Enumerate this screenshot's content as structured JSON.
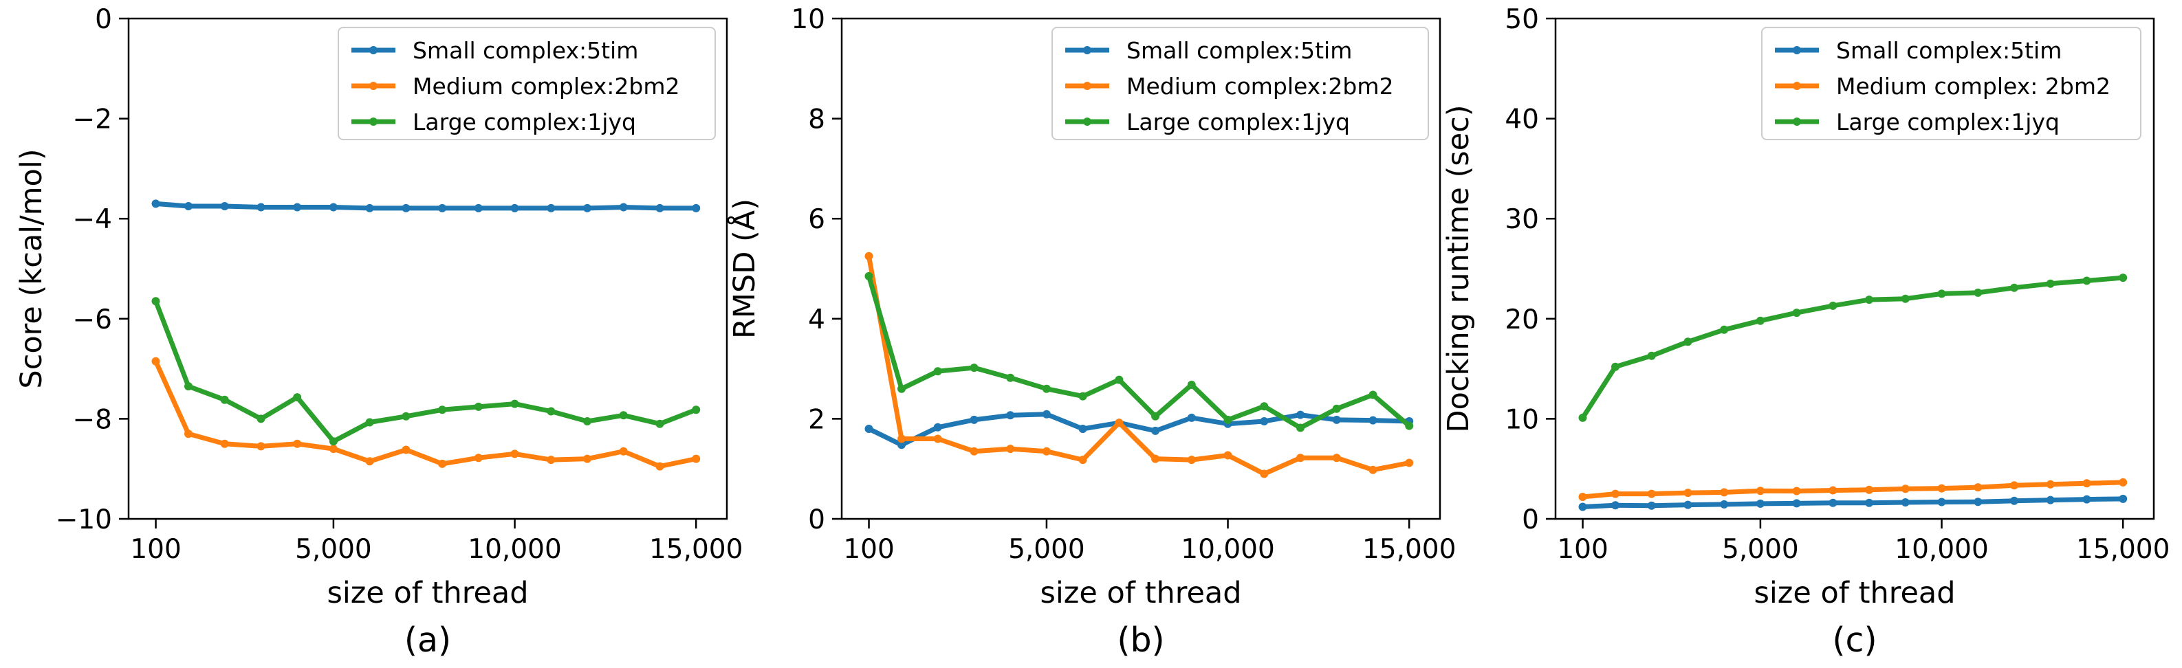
{
  "colors": {
    "series_1": "#1f77b4",
    "series_2": "#ff7f0e",
    "series_3": "#2ca02c"
  },
  "chart_data": [
    {
      "type": "line",
      "subplot_label": "(a)",
      "xlabel": "size of thread",
      "ylabel": "Score (kcal/mol)",
      "x": [
        100,
        1000,
        2000,
        3000,
        4000,
        5000,
        6000,
        7000,
        8000,
        9000,
        10000,
        11000,
        12000,
        13000,
        14000,
        15000
      ],
      "xlim": [
        -650,
        15850
      ],
      "ylim": [
        -10,
        0
      ],
      "xticks": [
        100,
        5000,
        10000,
        15000
      ],
      "xtick_labels": [
        "100",
        "5,000",
        "10,000",
        "15,000"
      ],
      "yticks": [
        0,
        -2,
        -4,
        -6,
        -8,
        -10
      ],
      "ytick_labels": [
        "0",
        "−2",
        "−4",
        "−6",
        "−8",
        "−10"
      ],
      "legend_position": "top-right",
      "series": [
        {
          "name": "Small complex:5tim",
          "color": "#1f77b4",
          "values": [
            -3.7,
            -3.75,
            -3.75,
            -3.77,
            -3.77,
            -3.77,
            -3.79,
            -3.79,
            -3.79,
            -3.79,
            -3.79,
            -3.79,
            -3.79,
            -3.77,
            -3.79,
            -3.79
          ]
        },
        {
          "name": "Medium complex:2bm2",
          "color": "#ff7f0e",
          "values": [
            -6.85,
            -8.3,
            -8.5,
            -8.55,
            -8.5,
            -8.6,
            -8.85,
            -8.62,
            -8.9,
            -8.78,
            -8.7,
            -8.82,
            -8.8,
            -8.65,
            -8.95,
            -8.8
          ]
        },
        {
          "name": "Large complex:1jyq",
          "color": "#2ca02c",
          "values": [
            -5.65,
            -7.35,
            -7.62,
            -8.0,
            -7.57,
            -8.45,
            -8.07,
            -7.95,
            -7.82,
            -7.76,
            -7.7,
            -7.85,
            -8.05,
            -7.93,
            -8.1,
            -7.82
          ]
        }
      ]
    },
    {
      "type": "line",
      "subplot_label": "(b)",
      "xlabel": "size of thread",
      "ylabel": "RMSD (Å)",
      "x": [
        100,
        1000,
        2000,
        3000,
        4000,
        5000,
        6000,
        7000,
        8000,
        9000,
        10000,
        11000,
        12000,
        13000,
        14000,
        15000
      ],
      "xlim": [
        -650,
        15850
      ],
      "ylim": [
        0,
        10
      ],
      "xticks": [
        100,
        5000,
        10000,
        15000
      ],
      "xtick_labels": [
        "100",
        "5,000",
        "10,000",
        "15,000"
      ],
      "yticks": [
        0,
        2,
        4,
        6,
        8,
        10
      ],
      "ytick_labels": [
        "0",
        "2",
        "4",
        "6",
        "8",
        "10"
      ],
      "legend_position": "top-right",
      "series": [
        {
          "name": "Small complex:5tim",
          "color": "#1f77b4",
          "values": [
            1.8,
            1.48,
            1.83,
            1.98,
            2.07,
            2.09,
            1.8,
            1.92,
            1.76,
            2.02,
            1.9,
            1.95,
            2.08,
            1.98,
            1.97,
            1.95
          ]
        },
        {
          "name": "Medium complex:2bm2",
          "color": "#ff7f0e",
          "values": [
            5.25,
            1.6,
            1.6,
            1.35,
            1.4,
            1.35,
            1.18,
            1.92,
            1.2,
            1.18,
            1.27,
            0.9,
            1.22,
            1.22,
            0.98,
            1.12
          ]
        },
        {
          "name": "Large complex:1jyq",
          "color": "#2ca02c",
          "values": [
            4.85,
            2.6,
            2.95,
            3.02,
            2.82,
            2.6,
            2.45,
            2.78,
            2.05,
            2.68,
            1.98,
            2.25,
            1.82,
            2.2,
            2.48,
            1.86
          ]
        }
      ]
    },
    {
      "type": "line",
      "subplot_label": "(c)",
      "xlabel": "size of thread",
      "ylabel": "Docking runtime (sec)",
      "x": [
        100,
        1000,
        2000,
        3000,
        4000,
        5000,
        6000,
        7000,
        8000,
        9000,
        10000,
        11000,
        12000,
        13000,
        14000,
        15000
      ],
      "xlim": [
        -650,
        15850
      ],
      "ylim": [
        0,
        50
      ],
      "xticks": [
        100,
        5000,
        10000,
        15000
      ],
      "xtick_labels": [
        "100",
        "5,000",
        "10,000",
        "15,000"
      ],
      "yticks": [
        0,
        10,
        20,
        30,
        40,
        50
      ],
      "ytick_labels": [
        "0",
        "10",
        "20",
        "30",
        "40",
        "50"
      ],
      "legend_position": "top-right",
      "series": [
        {
          "name": "Small complex:5tim",
          "color": "#1f77b4",
          "values": [
            1.2,
            1.35,
            1.32,
            1.4,
            1.45,
            1.52,
            1.55,
            1.6,
            1.6,
            1.65,
            1.68,
            1.7,
            1.8,
            1.88,
            1.95,
            2.0
          ]
        },
        {
          "name": "Medium complex: 2bm2",
          "color": "#ff7f0e",
          "values": [
            2.2,
            2.5,
            2.5,
            2.6,
            2.65,
            2.8,
            2.78,
            2.85,
            2.9,
            3.0,
            3.05,
            3.15,
            3.35,
            3.45,
            3.55,
            3.65
          ]
        },
        {
          "name": "Large complex:1jyq",
          "color": "#2ca02c",
          "values": [
            10.1,
            15.2,
            16.3,
            17.7,
            18.9,
            19.8,
            20.6,
            21.3,
            21.9,
            22.0,
            22.5,
            22.6,
            23.1,
            23.5,
            23.8,
            24.1
          ]
        }
      ]
    }
  ]
}
